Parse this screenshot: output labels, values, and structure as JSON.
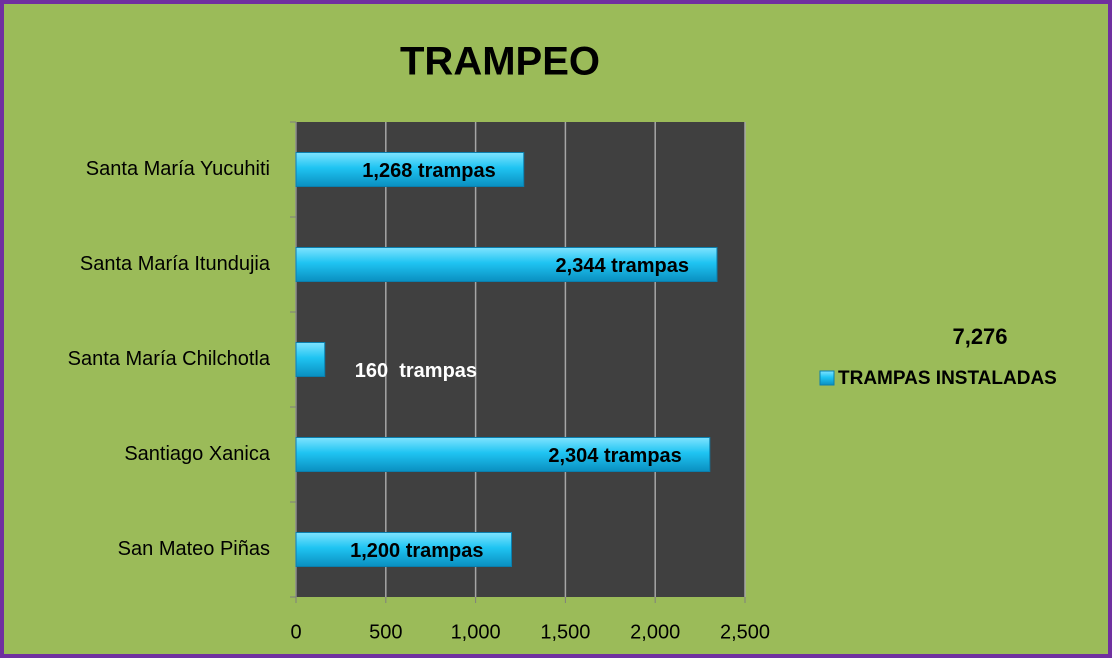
{
  "chart_data": {
    "type": "bar",
    "orientation": "horizontal",
    "title": "TRAMPEO",
    "categories": [
      "Santa María Yucuhiti",
      "Santa María Itundujia",
      "Santa María Chilchotla",
      "Santiago Xanica",
      "San Mateo Piñas"
    ],
    "series": [
      {
        "name": "TRAMPAS INSTALADAS",
        "color": "#1fc4f2",
        "values": [
          1268,
          2344,
          160,
          2304,
          1200
        ],
        "value_labels": [
          "1,268 trampas",
          "2,344 trampas",
          "160  trampas",
          "2,304 trampas",
          "1,200 trampas"
        ]
      }
    ],
    "annotation": "7,276",
    "xlim": [
      0,
      2500
    ],
    "xticks": [
      0,
      500,
      {
        "value": 1000,
        "label": "1,000"
      },
      {
        "value": 1500,
        "label": "1,500"
      },
      {
        "value": 2000,
        "label": "2,000"
      },
      {
        "value": 2500,
        "label": "2,500"
      }
    ],
    "grid": true,
    "legend": "right"
  }
}
